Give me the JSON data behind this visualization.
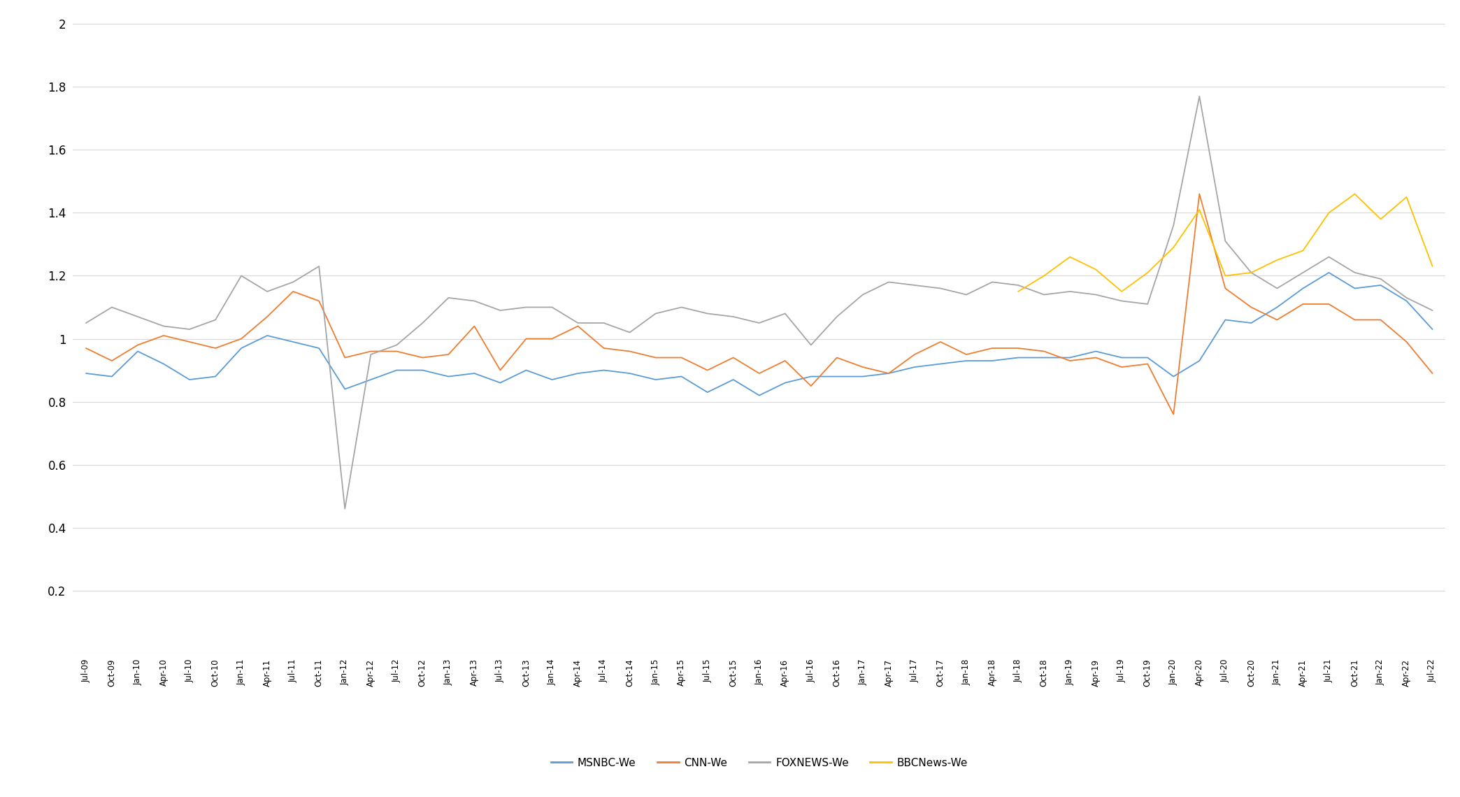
{
  "colors": {
    "MSNBC": "#5b9bd5",
    "CNN": "#ed7d31",
    "FOXNEWS": "#a5a5a5",
    "BBCNews": "#ffc000"
  },
  "background": "#ffffff",
  "grid_color": "#d9d9d9",
  "dates": [
    "Jul-09",
    "Oct-09",
    "Jan-10",
    "Apr-10",
    "Jul-10",
    "Oct-10",
    "Jan-11",
    "Apr-11",
    "Jul-11",
    "Oct-11",
    "Jan-12",
    "Apr-12",
    "Jul-12",
    "Oct-12",
    "Jan-13",
    "Apr-13",
    "Jul-13",
    "Oct-13",
    "Jan-14",
    "Apr-14",
    "Jul-14",
    "Oct-14",
    "Jan-15",
    "Apr-15",
    "Jul-15",
    "Oct-15",
    "Jan-16",
    "Apr-16",
    "Jul-16",
    "Oct-16",
    "Jan-17",
    "Apr-17",
    "Jul-17",
    "Oct-17",
    "Jan-18",
    "Apr-18",
    "Jul-18",
    "Oct-18",
    "Jan-19",
    "Apr-19",
    "Jul-19",
    "Oct-19",
    "Jan-20",
    "Apr-20",
    "Jul-20",
    "Oct-20",
    "Jan-21",
    "Apr-21",
    "Jul-21",
    "Oct-21",
    "Jan-22",
    "Apr-22",
    "Jul-22"
  ],
  "MSNBC": [
    0.89,
    0.88,
    0.96,
    0.92,
    0.87,
    0.88,
    0.97,
    1.01,
    0.99,
    0.97,
    0.84,
    0.87,
    0.9,
    0.9,
    0.88,
    0.89,
    0.86,
    0.9,
    0.87,
    0.89,
    0.9,
    0.89,
    0.87,
    0.88,
    0.83,
    0.87,
    0.82,
    0.86,
    0.88,
    0.88,
    0.88,
    0.89,
    0.91,
    0.92,
    0.93,
    0.93,
    0.94,
    0.94,
    0.94,
    0.96,
    0.94,
    0.94,
    0.88,
    0.93,
    1.06,
    1.05,
    1.1,
    1.16,
    1.21,
    1.16,
    1.17,
    1.12,
    1.03
  ],
  "CNN": [
    0.97,
    0.93,
    0.98,
    1.01,
    0.99,
    0.97,
    1.0,
    1.07,
    1.15,
    1.12,
    0.94,
    0.96,
    0.96,
    0.94,
    0.95,
    1.04,
    0.9,
    1.0,
    1.0,
    1.04,
    0.97,
    0.96,
    0.94,
    0.94,
    0.9,
    0.94,
    0.89,
    0.93,
    0.85,
    0.94,
    0.91,
    0.89,
    0.95,
    0.99,
    0.95,
    0.97,
    0.97,
    0.96,
    0.93,
    0.94,
    0.91,
    0.92,
    0.76,
    1.46,
    1.16,
    1.1,
    1.06,
    1.11,
    1.11,
    1.06,
    1.06,
    0.99,
    0.89
  ],
  "FOXNEWS": [
    1.05,
    1.1,
    1.07,
    1.04,
    1.03,
    1.06,
    1.2,
    1.15,
    1.18,
    1.23,
    0.46,
    0.95,
    0.98,
    1.05,
    1.13,
    1.12,
    1.09,
    1.1,
    1.1,
    1.05,
    1.05,
    1.02,
    1.08,
    1.1,
    1.08,
    1.07,
    1.05,
    1.08,
    0.98,
    1.07,
    1.14,
    1.18,
    1.17,
    1.16,
    1.14,
    1.18,
    1.17,
    1.14,
    1.15,
    1.14,
    1.12,
    1.11,
    1.36,
    1.77,
    1.31,
    1.21,
    1.16,
    1.21,
    1.26,
    1.21,
    1.19,
    1.13,
    1.09
  ],
  "BBCNews": [
    null,
    null,
    null,
    null,
    null,
    null,
    null,
    null,
    null,
    null,
    null,
    null,
    null,
    null,
    null,
    null,
    null,
    null,
    null,
    null,
    null,
    null,
    null,
    null,
    null,
    null,
    null,
    null,
    null,
    null,
    null,
    null,
    null,
    null,
    null,
    null,
    1.15,
    1.2,
    1.26,
    1.22,
    1.15,
    1.21,
    1.29,
    1.41,
    1.2,
    1.21,
    1.25,
    1.28,
    1.4,
    1.46,
    1.38,
    1.45,
    1.23
  ],
  "ylim": [
    0,
    2.0
  ],
  "yticks": [
    0,
    0.2,
    0.4,
    0.6,
    0.8,
    1.0,
    1.2,
    1.4,
    1.6,
    1.8,
    2.0
  ],
  "ytick_labels": [
    "",
    "0.2",
    "0.4",
    "0.6",
    "0.8",
    "1",
    "1.2",
    "1.4",
    "1.6",
    "1.8",
    "2"
  ]
}
